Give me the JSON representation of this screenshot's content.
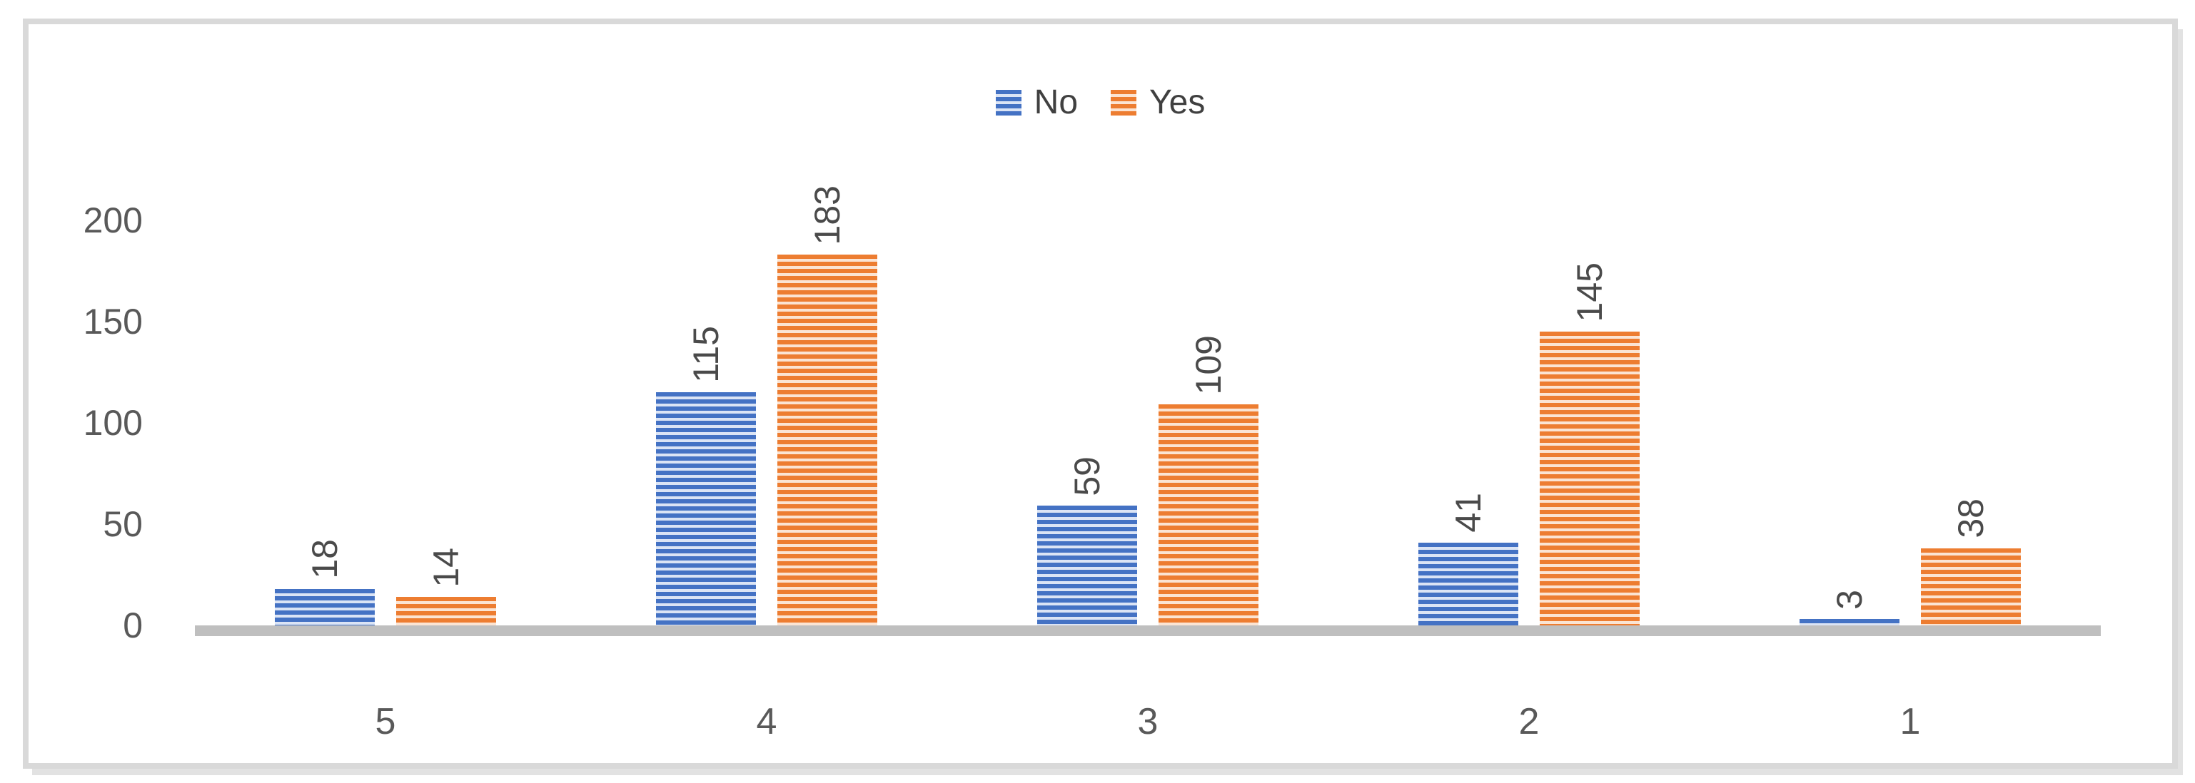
{
  "chart_data": {
    "type": "bar",
    "title": "",
    "xlabel": "",
    "ylabel": "",
    "categories": [
      "5",
      "4",
      "3",
      "2",
      "1"
    ],
    "series": [
      {
        "name": "No",
        "color": "#4472C4",
        "color_light": "#dbe4f5",
        "values": [
          18,
          115,
          59,
          41,
          3
        ]
      },
      {
        "name": "Yes",
        "color": "#ED7D31",
        "color_light": "#fbe4d3",
        "values": [
          14,
          183,
          109,
          145,
          38
        ]
      }
    ],
    "bar_labels": {
      "No": [
        "18",
        "115",
        "59",
        "41",
        "3"
      ],
      "Yes": [
        "14",
        "183",
        "109",
        "145",
        "38"
      ]
    },
    "y_ticks": [
      0,
      50,
      100,
      150,
      200
    ],
    "ylim": [
      0,
      200
    ],
    "grid": false,
    "legend_position": "top-center",
    "bar_fill_pattern": "horizontal-stripes",
    "data_label_rotation_deg": 270,
    "axis_line_color": "#bfbfbf",
    "tick_label_color": "#595959",
    "data_label_color": "#4a4a4a",
    "legend_text_color": "#404040",
    "frame_border_color": "#d9d9d9"
  }
}
